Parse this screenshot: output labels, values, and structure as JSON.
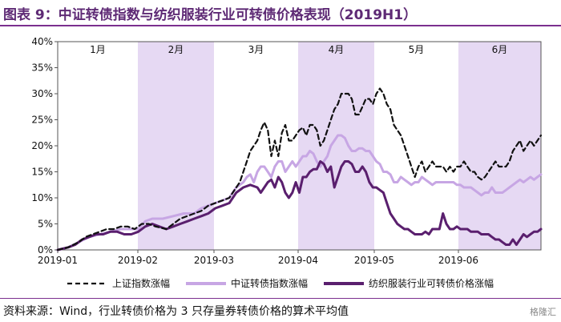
{
  "title": "图表 9：中证转债指数与纺织服装行业可转债价格表现（2019H1）",
  "source": "资料来源：Wind，行业转债价格为 3 只存量券转债价格的算术平均值",
  "watermark": "格隆汇",
  "chart_data": {
    "type": "line",
    "ylim": [
      0,
      40
    ],
    "yticks": [
      "0%",
      "5%",
      "10%",
      "15%",
      "20%",
      "25%",
      "30%",
      "35%",
      "40%"
    ],
    "xticks": [
      "2019-01",
      "2019-02",
      "2019-03",
      "2019-04",
      "2019-05",
      "2019-06"
    ],
    "months": [
      {
        "label": "1月",
        "shaded": false
      },
      {
        "label": "2月",
        "shaded": true
      },
      {
        "label": "3月",
        "shaded": false
      },
      {
        "label": "4月",
        "shaded": true
      },
      {
        "label": "5月",
        "shaded": false
      },
      {
        "label": "6月",
        "shaded": true
      }
    ],
    "series": [
      {
        "name": "上证指数涨幅",
        "color": "#111111",
        "dash": true,
        "points": [
          [
            0,
            0
          ],
          [
            3,
            0.5
          ],
          [
            6,
            1.5
          ],
          [
            8,
            2.5
          ],
          [
            10,
            3
          ],
          [
            12,
            3.5
          ],
          [
            14,
            4
          ],
          [
            16,
            4
          ],
          [
            18,
            4.5
          ],
          [
            20,
            4.5
          ],
          [
            22,
            4
          ],
          [
            24,
            5
          ],
          [
            26,
            5
          ],
          [
            28,
            4.5
          ],
          [
            31,
            4
          ],
          [
            33,
            5
          ],
          [
            35,
            6
          ],
          [
            37,
            6.5
          ],
          [
            39,
            7
          ],
          [
            41,
            7.5
          ],
          [
            43,
            8.5
          ],
          [
            45,
            9
          ],
          [
            47,
            9.5
          ],
          [
            49,
            10
          ],
          [
            51,
            12
          ],
          [
            52,
            13
          ],
          [
            53,
            15
          ],
          [
            54,
            17
          ],
          [
            55,
            19
          ],
          [
            56,
            20
          ],
          [
            57,
            21
          ],
          [
            58,
            23
          ],
          [
            59,
            24.5
          ],
          [
            60,
            23
          ],
          [
            61,
            18
          ],
          [
            62,
            21
          ],
          [
            63,
            18
          ],
          [
            64,
            22.5
          ],
          [
            65,
            24
          ],
          [
            66,
            21
          ],
          [
            67,
            21
          ],
          [
            68,
            22
          ],
          [
            69,
            23
          ],
          [
            70,
            23.5
          ],
          [
            71,
            22
          ],
          [
            72,
            24
          ],
          [
            73,
            24
          ],
          [
            74,
            23
          ],
          [
            75,
            20
          ],
          [
            76,
            21
          ],
          [
            77,
            23
          ],
          [
            78,
            25
          ],
          [
            79,
            27
          ],
          [
            80,
            28
          ],
          [
            81,
            30
          ],
          [
            82,
            30
          ],
          [
            83,
            30
          ],
          [
            84,
            29
          ],
          [
            85,
            26
          ],
          [
            86,
            26
          ],
          [
            87,
            27.5
          ],
          [
            88,
            29
          ],
          [
            89,
            29
          ],
          [
            90,
            28
          ],
          [
            91,
            30
          ],
          [
            92,
            31
          ],
          [
            93,
            30
          ],
          [
            94,
            28
          ],
          [
            95,
            27
          ],
          [
            96,
            24
          ],
          [
            97,
            23
          ],
          [
            98,
            22
          ],
          [
            99,
            20
          ],
          [
            100,
            18
          ],
          [
            101,
            16
          ],
          [
            102,
            14
          ],
          [
            103,
            16
          ],
          [
            104,
            17
          ],
          [
            105,
            15
          ],
          [
            106,
            16
          ],
          [
            107,
            17
          ],
          [
            108,
            16
          ],
          [
            109,
            16
          ],
          [
            110,
            16
          ],
          [
            111,
            15
          ],
          [
            112,
            16
          ],
          [
            113,
            15
          ],
          [
            114,
            16
          ],
          [
            115,
            16
          ],
          [
            116,
            17
          ],
          [
            117,
            16
          ],
          [
            118,
            15
          ],
          [
            119,
            15
          ],
          [
            120,
            14
          ],
          [
            121,
            13.5
          ],
          [
            122,
            14
          ],
          [
            123,
            15
          ],
          [
            124,
            16
          ],
          [
            125,
            17
          ],
          [
            126,
            16
          ],
          [
            127,
            16
          ],
          [
            128,
            16
          ],
          [
            129,
            17
          ],
          [
            130,
            19
          ],
          [
            131,
            20
          ],
          [
            132,
            21
          ],
          [
            133,
            19
          ],
          [
            134,
            20
          ],
          [
            135,
            21
          ],
          [
            136,
            20
          ],
          [
            137,
            21
          ],
          [
            138,
            22
          ]
        ]
      },
      {
        "name": "中证转债指数涨幅",
        "color": "#c7a6e4",
        "dash": false,
        "points": [
          [
            0,
            0
          ],
          [
            3,
            0.5
          ],
          [
            6,
            1.5
          ],
          [
            9,
            2.5
          ],
          [
            12,
            3
          ],
          [
            15,
            3.5
          ],
          [
            18,
            4
          ],
          [
            21,
            4
          ],
          [
            23,
            4
          ],
          [
            25,
            5.5
          ],
          [
            27,
            6
          ],
          [
            30,
            6
          ],
          [
            33,
            6.5
          ],
          [
            36,
            7
          ],
          [
            39,
            7
          ],
          [
            41,
            8
          ],
          [
            43,
            8.5
          ],
          [
            45,
            9
          ],
          [
            47,
            9.5
          ],
          [
            49,
            10
          ],
          [
            51,
            12
          ],
          [
            53,
            13
          ],
          [
            54,
            14
          ],
          [
            55,
            14.5
          ],
          [
            56,
            13
          ],
          [
            57,
            15
          ],
          [
            58,
            16
          ],
          [
            59,
            16
          ],
          [
            60,
            15
          ],
          [
            61,
            14
          ],
          [
            62,
            16
          ],
          [
            63,
            17
          ],
          [
            64,
            17
          ],
          [
            65,
            15
          ],
          [
            66,
            16
          ],
          [
            67,
            17
          ],
          [
            68,
            16
          ],
          [
            69,
            17
          ],
          [
            70,
            18
          ],
          [
            71,
            18
          ],
          [
            72,
            19
          ],
          [
            73,
            18.5
          ],
          [
            74,
            17
          ],
          [
            75,
            16
          ],
          [
            76,
            17
          ],
          [
            77,
            18
          ],
          [
            78,
            20
          ],
          [
            79,
            21
          ],
          [
            80,
            22
          ],
          [
            81,
            22
          ],
          [
            82,
            21.5
          ],
          [
            83,
            20
          ],
          [
            84,
            19
          ],
          [
            85,
            19
          ],
          [
            86,
            19.5
          ],
          [
            87,
            19.5
          ],
          [
            88,
            19
          ],
          [
            89,
            19
          ],
          [
            90,
            18
          ],
          [
            91,
            17
          ],
          [
            92,
            16.5
          ],
          [
            93,
            15
          ],
          [
            94,
            15
          ],
          [
            95,
            14.5
          ],
          [
            96,
            13
          ],
          [
            97,
            13
          ],
          [
            98,
            14
          ],
          [
            99,
            13.5
          ],
          [
            100,
            13
          ],
          [
            101,
            12.5
          ],
          [
            102,
            13
          ],
          [
            103,
            13
          ],
          [
            104,
            14
          ],
          [
            105,
            13.5
          ],
          [
            106,
            13
          ],
          [
            107,
            12.5
          ],
          [
            108,
            13
          ],
          [
            109,
            13
          ],
          [
            110,
            13
          ],
          [
            111,
            13
          ],
          [
            112,
            13
          ],
          [
            113,
            13
          ],
          [
            114,
            12.5
          ],
          [
            115,
            12.5
          ],
          [
            116,
            12
          ],
          [
            117,
            12
          ],
          [
            118,
            12
          ],
          [
            119,
            11.5
          ],
          [
            120,
            11
          ],
          [
            121,
            10.5
          ],
          [
            122,
            11
          ],
          [
            123,
            11
          ],
          [
            124,
            12
          ],
          [
            125,
            11
          ],
          [
            126,
            11
          ],
          [
            127,
            11
          ],
          [
            128,
            11.5
          ],
          [
            129,
            12
          ],
          [
            130,
            12.5
          ],
          [
            131,
            13
          ],
          [
            132,
            13.5
          ],
          [
            133,
            13
          ],
          [
            134,
            13.5
          ],
          [
            135,
            14
          ],
          [
            136,
            13.5
          ],
          [
            137,
            14
          ],
          [
            138,
            14.5
          ]
        ]
      },
      {
        "name": "纺织服装行业可转债价格涨幅",
        "color": "#5a1f6e",
        "dash": false,
        "points": [
          [
            0,
            0
          ],
          [
            3,
            0.5
          ],
          [
            5,
            1
          ],
          [
            7,
            2
          ],
          [
            9,
            2.5
          ],
          [
            11,
            3
          ],
          [
            13,
            3
          ],
          [
            15,
            3.5
          ],
          [
            17,
            3.5
          ],
          [
            19,
            3
          ],
          [
            21,
            3
          ],
          [
            23,
            3.5
          ],
          [
            25,
            4.5
          ],
          [
            27,
            5
          ],
          [
            29,
            4.5
          ],
          [
            31,
            4
          ],
          [
            33,
            4.5
          ],
          [
            35,
            5
          ],
          [
            37,
            5.5
          ],
          [
            39,
            6
          ],
          [
            41,
            6.5
          ],
          [
            43,
            7
          ],
          [
            45,
            8
          ],
          [
            47,
            8.5
          ],
          [
            49,
            9
          ],
          [
            51,
            11
          ],
          [
            53,
            12
          ],
          [
            55,
            12.5
          ],
          [
            57,
            12
          ],
          [
            58,
            11
          ],
          [
            59,
            12
          ],
          [
            60,
            13
          ],
          [
            61,
            13.5
          ],
          [
            62,
            12
          ],
          [
            63,
            14
          ],
          [
            64,
            13
          ],
          [
            65,
            11
          ],
          [
            66,
            10
          ],
          [
            67,
            11
          ],
          [
            68,
            13
          ],
          [
            69,
            11
          ],
          [
            70,
            14
          ],
          [
            71,
            14
          ],
          [
            72,
            15
          ],
          [
            73,
            15.5
          ],
          [
            74,
            15.5
          ],
          [
            75,
            17
          ],
          [
            76,
            16.5
          ],
          [
            77,
            15
          ],
          [
            78,
            16
          ],
          [
            79,
            12
          ],
          [
            80,
            14
          ],
          [
            81,
            16
          ],
          [
            82,
            17
          ],
          [
            83,
            17
          ],
          [
            84,
            16.5
          ],
          [
            85,
            15
          ],
          [
            86,
            15
          ],
          [
            87,
            16
          ],
          [
            88,
            15
          ],
          [
            89,
            13
          ],
          [
            90,
            12
          ],
          [
            91,
            12
          ],
          [
            92,
            11.5
          ],
          [
            93,
            11
          ],
          [
            94,
            9
          ],
          [
            95,
            7
          ],
          [
            96,
            6
          ],
          [
            97,
            5
          ],
          [
            98,
            4.5
          ],
          [
            99,
            4
          ],
          [
            100,
            4
          ],
          [
            101,
            3.5
          ],
          [
            102,
            3
          ],
          [
            103,
            3
          ],
          [
            104,
            3
          ],
          [
            105,
            3.5
          ],
          [
            106,
            3
          ],
          [
            107,
            4
          ],
          [
            108,
            4
          ],
          [
            109,
            4
          ],
          [
            110,
            7
          ],
          [
            111,
            5
          ],
          [
            112,
            4
          ],
          [
            113,
            4
          ],
          [
            114,
            4.5
          ],
          [
            115,
            4
          ],
          [
            116,
            4
          ],
          [
            117,
            4
          ],
          [
            118,
            3.5
          ],
          [
            119,
            3.5
          ],
          [
            120,
            3.5
          ],
          [
            121,
            3
          ],
          [
            122,
            3
          ],
          [
            123,
            3
          ],
          [
            124,
            2.5
          ],
          [
            125,
            2
          ],
          [
            126,
            2
          ],
          [
            127,
            1.5
          ],
          [
            128,
            1
          ],
          [
            129,
            1
          ],
          [
            130,
            2
          ],
          [
            131,
            1
          ],
          [
            132,
            2
          ],
          [
            133,
            3
          ],
          [
            134,
            2.5
          ],
          [
            135,
            3
          ],
          [
            136,
            3.5
          ],
          [
            137,
            3.5
          ],
          [
            138,
            4
          ]
        ]
      }
    ]
  }
}
